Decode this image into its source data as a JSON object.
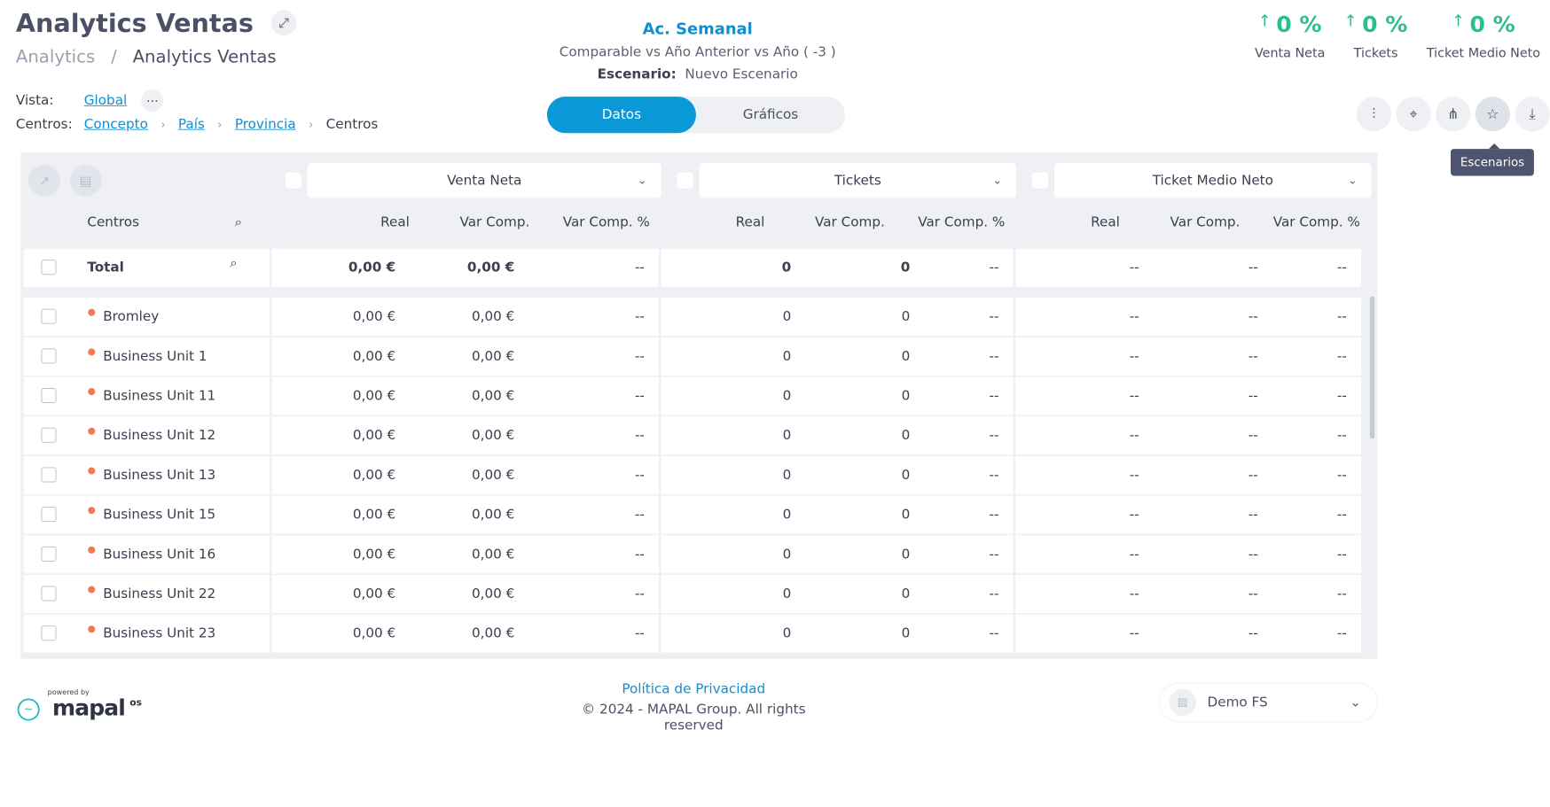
{
  "header": {
    "title": "Analytics Ventas",
    "breadcrumb": [
      "Analytics",
      "Analytics Ventas"
    ],
    "separator": "/"
  },
  "filters": {
    "vista_label": "Vista:",
    "vista_value": "Global",
    "centros_label": "Centros:",
    "path": [
      "Concepto",
      "País",
      "Provincia"
    ],
    "current": "Centros"
  },
  "period": {
    "title": "Ac. Semanal",
    "comparison": "Comparable vs Año Anterior vs Año ( -3 )",
    "scenario_label": "Escenario:",
    "scenario_value": "Nuevo Escenario"
  },
  "toggle": {
    "datos": "Datos",
    "graficos": "Gráficos"
  },
  "kpis": [
    {
      "value": "0 %",
      "label": "Venta Neta"
    },
    {
      "value": "0 %",
      "label": "Tickets"
    },
    {
      "value": "0 %",
      "label": "Ticket Medio Neto"
    }
  ],
  "tooltip": "Escenarios",
  "table": {
    "metrics": [
      "Venta Neta",
      "Tickets",
      "Ticket Medio Neto"
    ],
    "centros_header": "Centros",
    "subcols": [
      "Real",
      "Var Comp.",
      "Var Comp. %"
    ],
    "total": {
      "name": "Total",
      "vn": [
        "0,00 €",
        "0,00 €",
        "--"
      ],
      "tk": [
        "0",
        "0",
        "--"
      ],
      "tm": [
        "--",
        "--",
        "--"
      ]
    },
    "rows": [
      {
        "name": "Bromley",
        "vn": [
          "0,00 €",
          "0,00 €",
          "--"
        ],
        "tk": [
          "0",
          "0",
          "--"
        ],
        "tm": [
          "--",
          "--",
          "--"
        ]
      },
      {
        "name": "Business Unit 1",
        "vn": [
          "0,00 €",
          "0,00 €",
          "--"
        ],
        "tk": [
          "0",
          "0",
          "--"
        ],
        "tm": [
          "--",
          "--",
          "--"
        ]
      },
      {
        "name": "Business Unit 11",
        "vn": [
          "0,00 €",
          "0,00 €",
          "--"
        ],
        "tk": [
          "0",
          "0",
          "--"
        ],
        "tm": [
          "--",
          "--",
          "--"
        ]
      },
      {
        "name": "Business Unit 12",
        "vn": [
          "0,00 €",
          "0,00 €",
          "--"
        ],
        "tk": [
          "0",
          "0",
          "--"
        ],
        "tm": [
          "--",
          "--",
          "--"
        ]
      },
      {
        "name": "Business Unit 13",
        "vn": [
          "0,00 €",
          "0,00 €",
          "--"
        ],
        "tk": [
          "0",
          "0",
          "--"
        ],
        "tm": [
          "--",
          "--",
          "--"
        ]
      },
      {
        "name": "Business Unit 15",
        "vn": [
          "0,00 €",
          "0,00 €",
          "--"
        ],
        "tk": [
          "0",
          "0",
          "--"
        ],
        "tm": [
          "--",
          "--",
          "--"
        ]
      },
      {
        "name": "Business Unit 16",
        "vn": [
          "0,00 €",
          "0,00 €",
          "--"
        ],
        "tk": [
          "0",
          "0",
          "--"
        ],
        "tm": [
          "--",
          "--",
          "--"
        ]
      },
      {
        "name": "Business Unit 22",
        "vn": [
          "0,00 €",
          "0,00 €",
          "--"
        ],
        "tk": [
          "0",
          "0",
          "--"
        ],
        "tm": [
          "--",
          "--",
          "--"
        ]
      },
      {
        "name": "Business Unit 23",
        "vn": [
          "0,00 €",
          "0,00 €",
          "--"
        ],
        "tk": [
          "0",
          "0",
          "--"
        ],
        "tm": [
          "--",
          "--",
          "--"
        ]
      }
    ]
  },
  "footer": {
    "privacy": "Política de Privacidad",
    "copyright": "© 2024 - MAPAL Group. All rights reserved",
    "powered": "powered by",
    "brand": "mapal",
    "os": "os",
    "company": "Demo FS"
  },
  "colors": {
    "accent": "#0a98d6",
    "kpi": "#2bbf8f",
    "dot": "#ef7a55"
  }
}
